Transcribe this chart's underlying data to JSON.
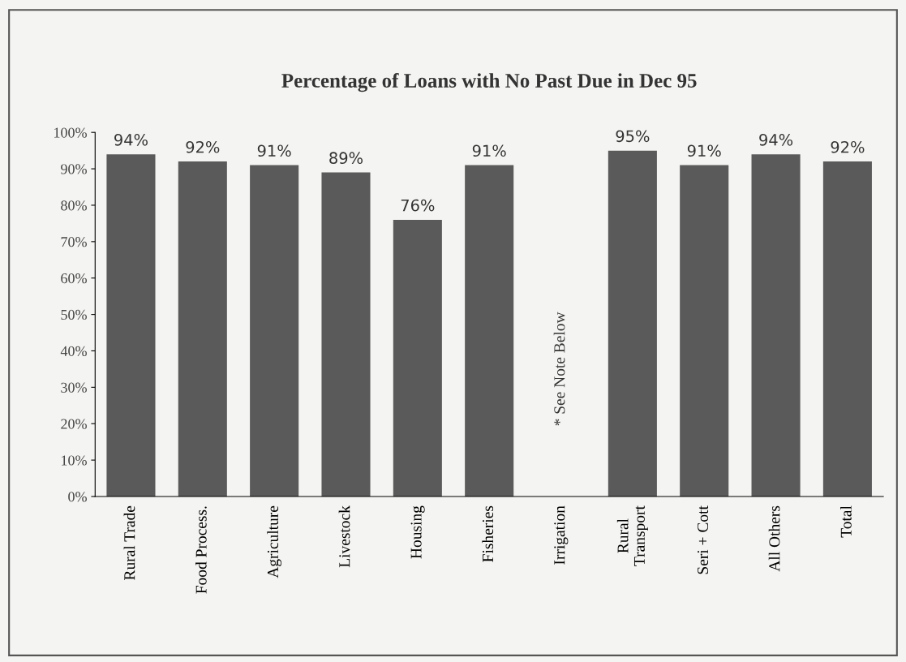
{
  "chart_data": {
    "type": "bar",
    "title": "Percentage of Loans with No Past Due in Dec 95",
    "categories": [
      "Rural Trade",
      "Food Process.",
      "Agriculture",
      "Livestock",
      "Housing",
      "Fisheries",
      "Irrigation",
      "Rural\nTransport",
      "Seri + Cott",
      "All Others",
      "Total"
    ],
    "values": [
      94,
      92,
      91,
      89,
      76,
      91,
      null,
      95,
      91,
      94,
      92
    ],
    "value_labels": [
      "94%",
      "92%",
      "91%",
      "89%",
      "76%",
      "91%",
      null,
      "95%",
      "91%",
      "94%",
      "92%"
    ],
    "color": "#5a5a5a",
    "ylim": [
      0,
      100
    ],
    "yticks": [
      {
        "value": 0,
        "label": "0%"
      },
      {
        "value": 10,
        "label": "10%"
      },
      {
        "value": 20,
        "label": "20%"
      },
      {
        "value": 30,
        "label": "30%"
      },
      {
        "value": 40,
        "label": "40%"
      },
      {
        "value": 50,
        "label": "50%"
      },
      {
        "value": 60,
        "label": "60%"
      },
      {
        "value": 70,
        "label": "70%"
      },
      {
        "value": 80,
        "label": "80%"
      },
      {
        "value": 90,
        "label": "90%"
      },
      {
        "value": 100,
        "label": "100%"
      }
    ],
    "annotations": [
      "* See Note Below"
    ],
    "grid": false,
    "legend": false
  }
}
